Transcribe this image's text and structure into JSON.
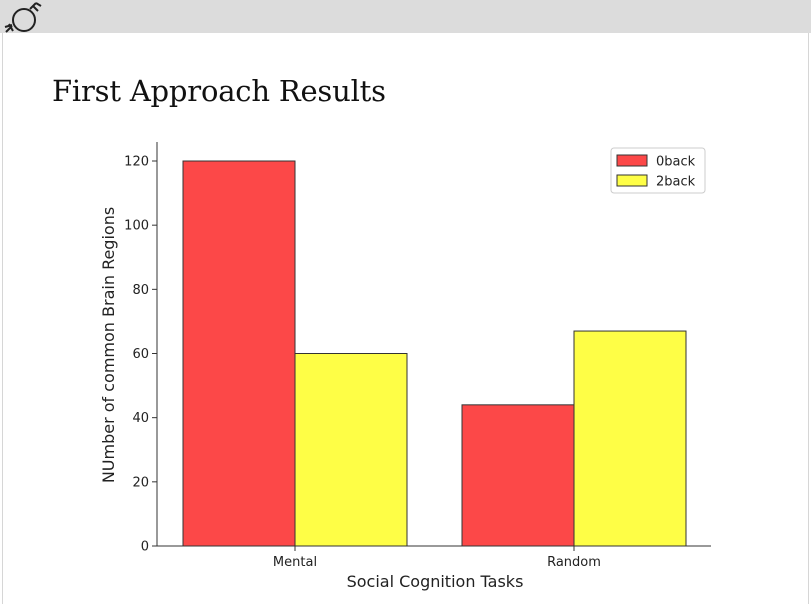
{
  "slide": {
    "title": "First Approach Results"
  },
  "chart_data": {
    "type": "bar",
    "categories": [
      "Mental",
      "Random"
    ],
    "series": [
      {
        "name": "0back",
        "values": [
          120,
          44
        ],
        "color": "#fc4848"
      },
      {
        "name": "2back",
        "values": [
          60,
          67
        ],
        "color": "#fefe46"
      }
    ],
    "xlabel": "Social Cognition Tasks",
    "ylabel": "NUmber of common Brain Regions",
    "ylim": [
      0,
      126
    ],
    "yticks": [
      0,
      20,
      40,
      60,
      80,
      100,
      120
    ],
    "legend_position": "top-right",
    "grid": false,
    "bar_edge_color": "#333333"
  }
}
